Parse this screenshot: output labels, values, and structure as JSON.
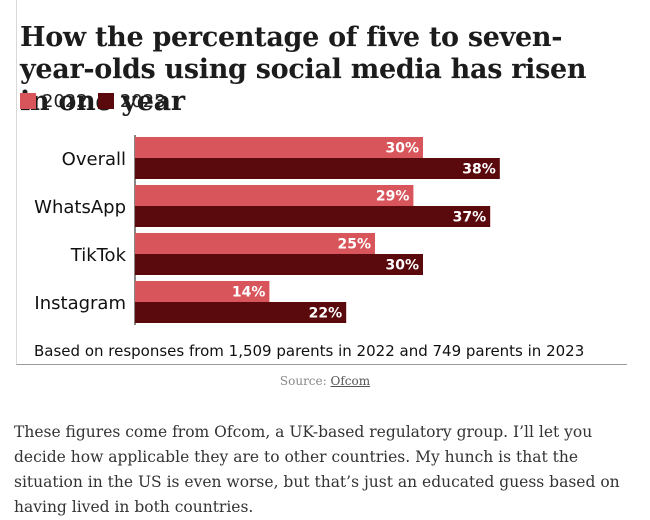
{
  "colors": {
    "y2022": "#d9555c",
    "y2023": "#5a0a0c",
    "label_text": "#ffffff"
  },
  "chart_data": {
    "type": "bar",
    "orientation": "horizontal",
    "title": "How the percentage of five to seven-year-olds using social media has risen in one year",
    "categories": [
      "Overall",
      "WhatsApp",
      "TikTok",
      "Instagram"
    ],
    "series": [
      {
        "name": "2022",
        "values": [
          30,
          29,
          25,
          14
        ],
        "labels": [
          "30%",
          "29%",
          "25%",
          "14%"
        ]
      },
      {
        "name": "2023",
        "values": [
          38,
          37,
          30,
          22
        ],
        "labels": [
          "38%",
          "37%",
          "30%",
          "22%"
        ]
      }
    ],
    "xlim": [
      0,
      100
    ],
    "unit": "%",
    "grid": false,
    "legend": "top-left",
    "footnote": "Based on responses from 1,509 parents in 2022 and 749 parents in 2023"
  },
  "source": {
    "label": "Source:",
    "link": "Ofcom"
  },
  "article": {
    "paragraph": "These figures come from Ofcom, a UK-based regulatory group. I’ll let you decide how applicable they are to other countries. My hunch is that the situation in the US is even worse, but that’s just an educated guess based on having lived in both countries."
  }
}
